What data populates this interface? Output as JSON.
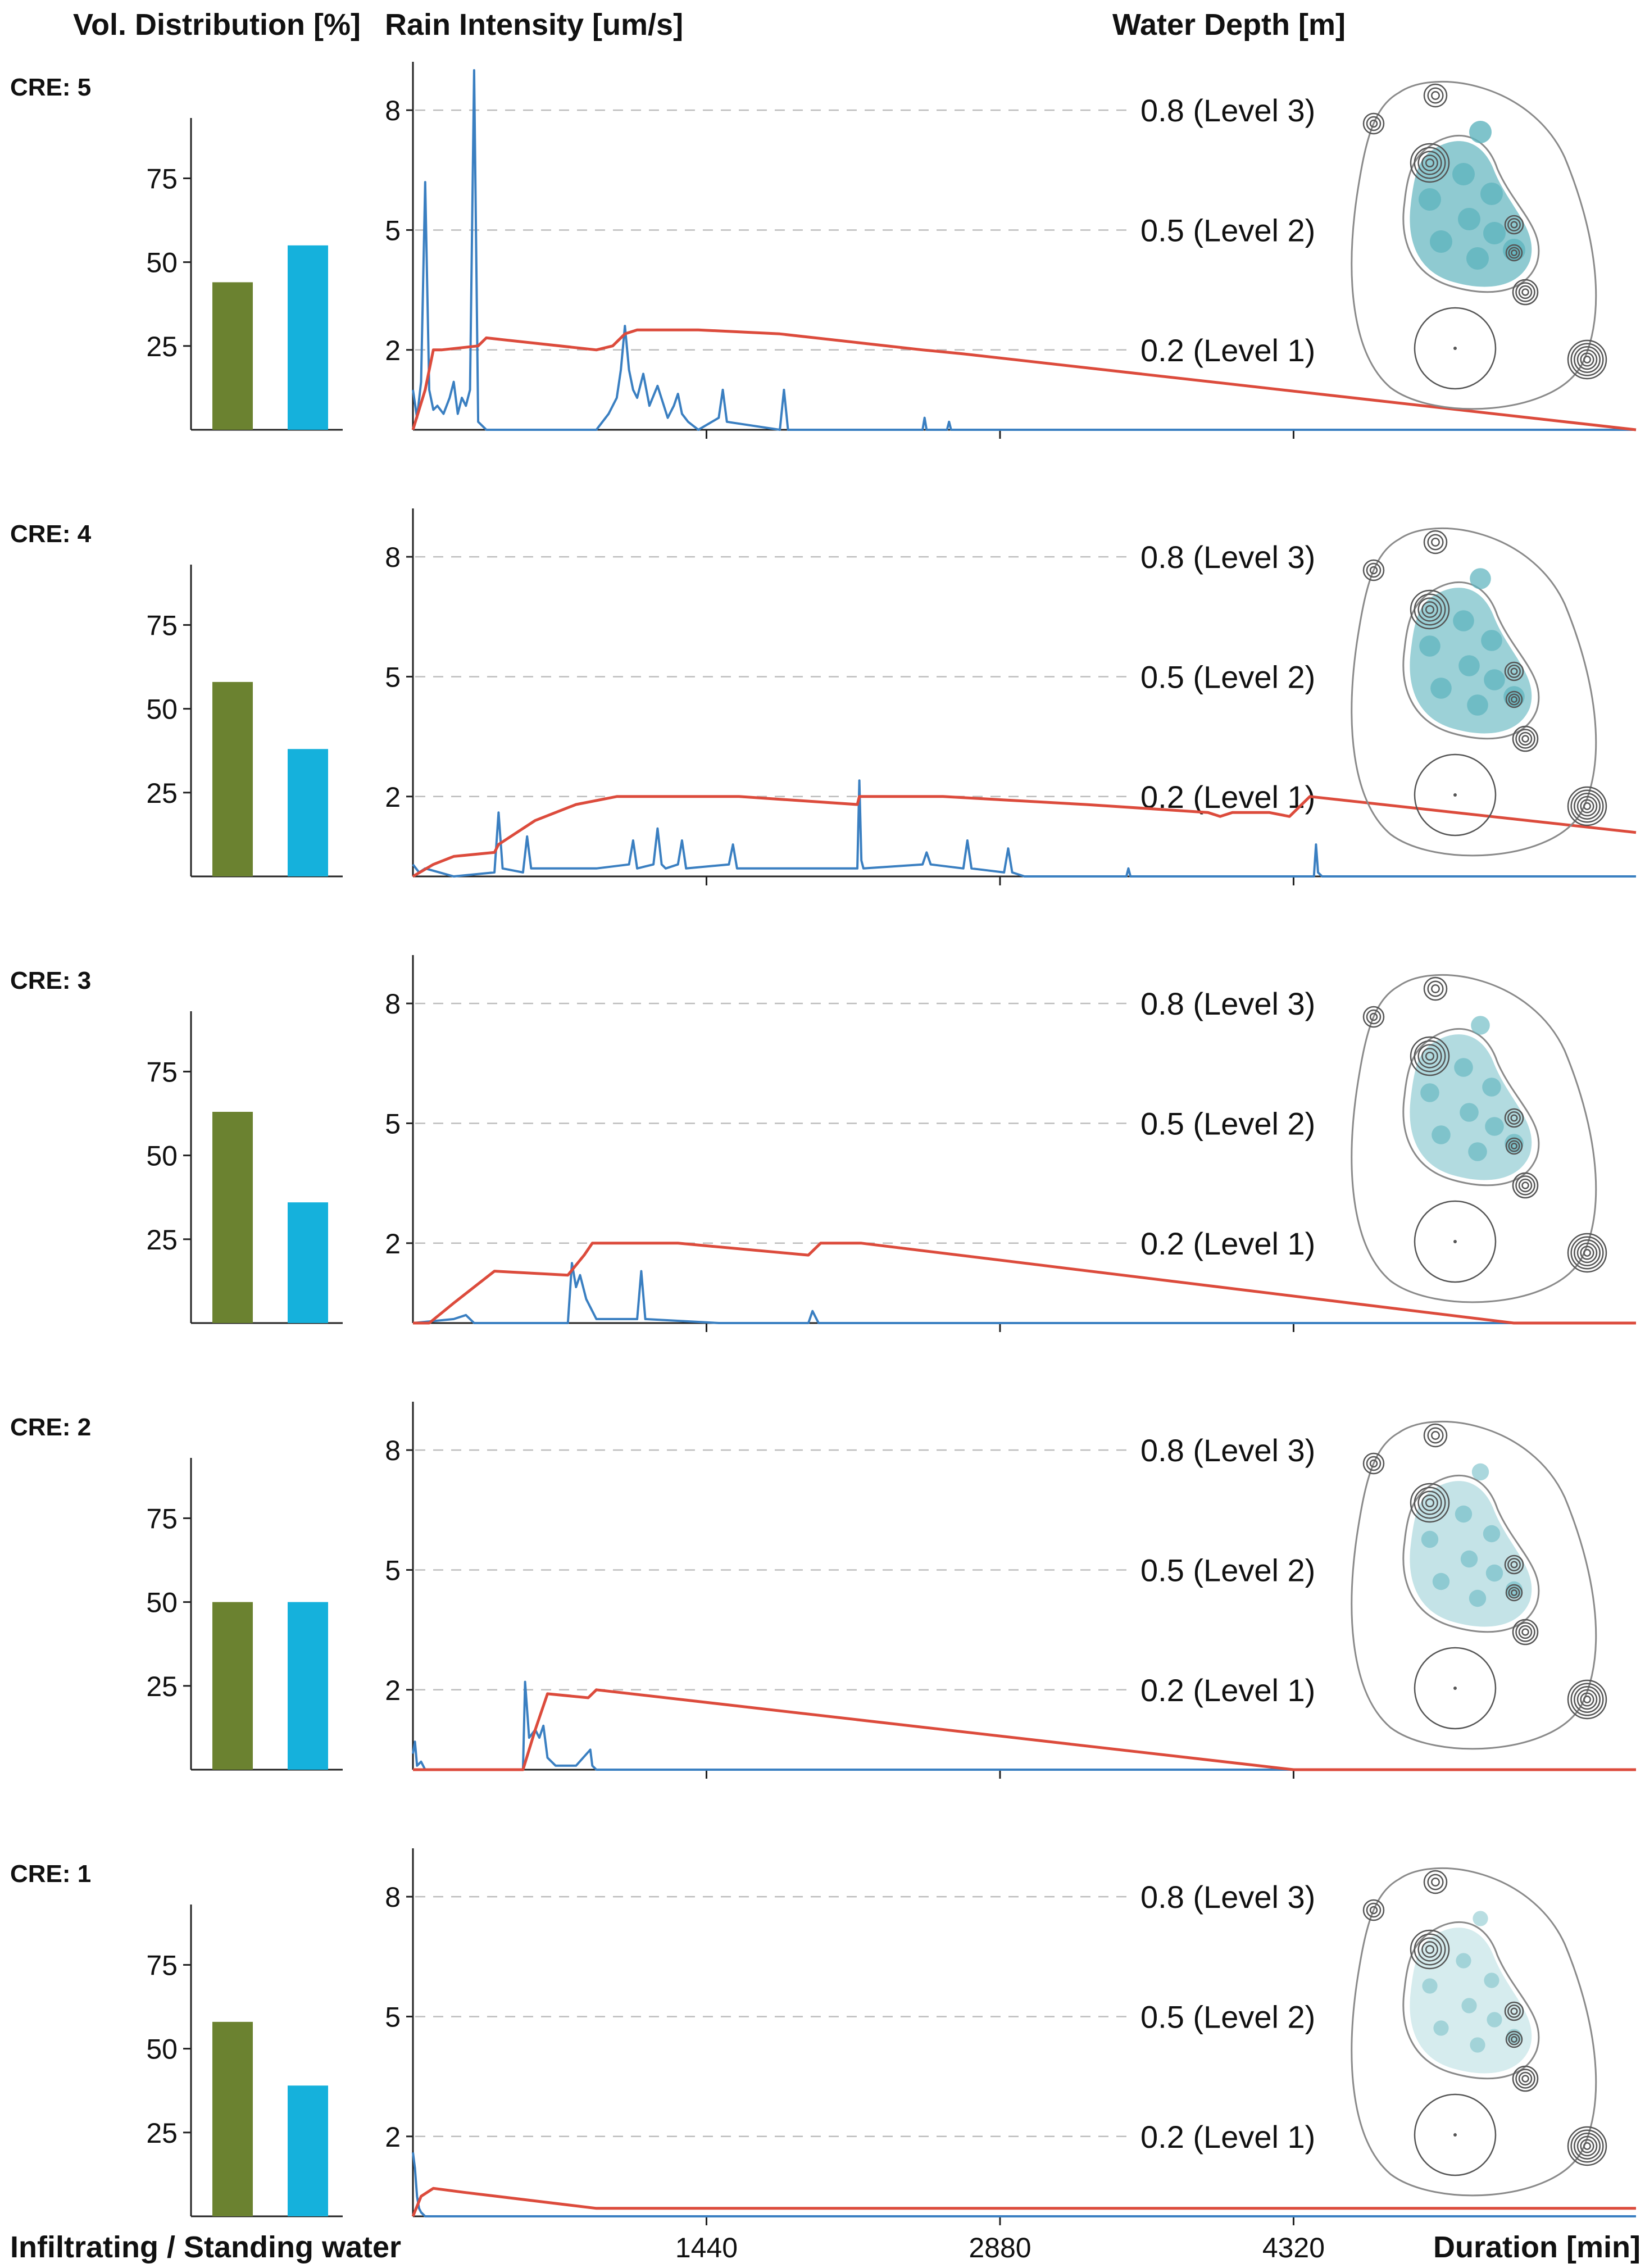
{
  "headers": {
    "vol_distribution": "Vol. Distribution [%]",
    "rain_intensity": "Rain Intensity [um/s]",
    "water_depth": "Water Depth [m]",
    "bar_legend": "Infiltrating / Standing water",
    "duration": "Duration [min]"
  },
  "colors": {
    "infiltrating": "#6b8230",
    "standing_water": "#15b1dc",
    "rain": "#3a7fc1",
    "water_depth": "#dc4b3c",
    "pond": "#5fb4be",
    "gridline": "#bdbdbd"
  },
  "chart_data": [
    {
      "panel": "CRE: 5",
      "type": "bar",
      "categories": [
        "Infiltrating",
        "Standing water"
      ],
      "values": [
        44,
        55
      ],
      "ylabel": "Vol. Distribution [%]",
      "yticks": [
        "25",
        "50",
        "75"
      ],
      "ylim": [
        0,
        93
      ],
      "rain_intensity": {
        "type": "line",
        "ylabel": "Rain Intensity [um/s]",
        "yticks": [
          "2",
          "5",
          "8"
        ],
        "ylim": [
          0,
          9
        ],
        "xlim": [
          0,
          6000
        ],
        "x": [
          0,
          20,
          40,
          60,
          80,
          100,
          120,
          150,
          180,
          200,
          220,
          240,
          260,
          280,
          300,
          320,
          340,
          360,
          900,
          960,
          1000,
          1020,
          1040,
          1060,
          1080,
          1100,
          1130,
          1160,
          1200,
          1250,
          1280,
          1300,
          1320,
          1350,
          1400,
          1500,
          1520,
          1540,
          1800,
          1820,
          1840,
          1860,
          2500,
          2510,
          2520,
          2620,
          2630,
          2640,
          6000
        ],
        "y": [
          1.0,
          0.3,
          1.2,
          6.2,
          1.0,
          0.5,
          0.6,
          0.4,
          0.8,
          1.2,
          0.4,
          0.8,
          0.6,
          1.0,
          9.0,
          0.2,
          0.1,
          0.0,
          0.0,
          0.4,
          0.8,
          1.5,
          2.6,
          1.5,
          1.0,
          0.8,
          1.4,
          0.6,
          1.1,
          0.3,
          0.6,
          0.9,
          0.4,
          0.2,
          0.0,
          0.3,
          1.0,
          0.2,
          0.0,
          1.0,
          0.0,
          0.0,
          0.0,
          0.3,
          0.0,
          0.0,
          0.2,
          0.0,
          0.0
        ]
      },
      "water_depth": {
        "type": "line",
        "ylabel": "Water Depth [m]",
        "levels": [
          "0.2 (Level 1)",
          "0.5 (Level 2)",
          "0.8 (Level 3)"
        ],
        "x": [
          0,
          60,
          100,
          140,
          320,
          360,
          900,
          980,
          1040,
          1100,
          1400,
          1800,
          2500,
          2700,
          6000
        ],
        "y": [
          0.0,
          0.1,
          0.2,
          0.2,
          0.21,
          0.23,
          0.2,
          0.21,
          0.24,
          0.25,
          0.25,
          0.24,
          0.2,
          0.19,
          0.0
        ]
      },
      "plan_fill": 1.0
    },
    {
      "panel": "CRE: 4",
      "type": "bar",
      "categories": [
        "Infiltrating",
        "Standing water"
      ],
      "values": [
        58,
        38
      ],
      "ylabel": "Vol. Distribution [%]",
      "yticks": [
        "25",
        "50",
        "75"
      ],
      "ylim": [
        0,
        93
      ],
      "rain_intensity": {
        "type": "line",
        "ylabel": "Rain Intensity [um/s]",
        "yticks": [
          "2",
          "5",
          "8"
        ],
        "ylim": [
          0,
          9
        ],
        "xlim": [
          0,
          6000
        ],
        "x": [
          0,
          30,
          60,
          200,
          400,
          420,
          440,
          540,
          560,
          580,
          900,
          1060,
          1080,
          1100,
          1180,
          1200,
          1220,
          1240,
          1300,
          1320,
          1340,
          1550,
          1570,
          1590,
          2180,
          2190,
          2200,
          2210,
          2500,
          2520,
          2540,
          2700,
          2720,
          2740,
          2900,
          2920,
          2940,
          3000,
          3500,
          3510,
          3520,
          4420,
          4430,
          4440,
          4460,
          6000
        ],
        "y": [
          0.3,
          0.1,
          0.2,
          0.0,
          0.1,
          1.6,
          0.2,
          0.1,
          1.0,
          0.2,
          0.2,
          0.3,
          0.9,
          0.2,
          0.3,
          1.2,
          0.3,
          0.2,
          0.3,
          0.9,
          0.2,
          0.3,
          0.8,
          0.2,
          0.2,
          2.4,
          0.4,
          0.2,
          0.3,
          0.6,
          0.3,
          0.2,
          0.9,
          0.2,
          0.1,
          0.7,
          0.1,
          0.0,
          0.0,
          0.2,
          0.0,
          0.0,
          0.8,
          0.1,
          0.0,
          0.0
        ]
      },
      "water_depth": {
        "type": "line",
        "ylabel": "Water Depth [m]",
        "levels": [
          "0.2 (Level 1)",
          "0.5 (Level 2)",
          "0.8 (Level 3)"
        ],
        "x": [
          0,
          100,
          200,
          400,
          420,
          600,
          800,
          1000,
          1300,
          1600,
          2180,
          2190,
          2600,
          3300,
          3900,
          3960,
          4020,
          4200,
          4300,
          4400,
          6000
        ],
        "y": [
          0.0,
          0.03,
          0.05,
          0.06,
          0.08,
          0.14,
          0.18,
          0.2,
          0.2,
          0.2,
          0.18,
          0.2,
          0.2,
          0.18,
          0.16,
          0.15,
          0.16,
          0.16,
          0.15,
          0.2,
          0.11
        ]
      },
      "plan_fill": 0.85
    },
    {
      "panel": "CRE: 3",
      "type": "bar",
      "categories": [
        "Infiltrating",
        "Standing water"
      ],
      "values": [
        63,
        36
      ],
      "ylabel": "Vol. Distribution [%]",
      "yticks": [
        "25",
        "50",
        "75"
      ],
      "ylim": [
        0,
        93
      ],
      "rain_intensity": {
        "type": "line",
        "ylabel": "Rain Intensity [um/s]",
        "yticks": [
          "2",
          "5",
          "8"
        ],
        "ylim": [
          0,
          9
        ],
        "xlim": [
          0,
          6000
        ],
        "x": [
          0,
          200,
          260,
          300,
          760,
          780,
          800,
          820,
          850,
          900,
          1100,
          1120,
          1140,
          1500,
          1940,
          1960,
          1990,
          6000
        ],
        "y": [
          0.0,
          0.1,
          0.2,
          0.0,
          0.0,
          1.5,
          0.9,
          1.2,
          0.6,
          0.1,
          0.1,
          1.3,
          0.1,
          0.0,
          0.0,
          0.3,
          0.0,
          0.0
        ]
      },
      "water_depth": {
        "type": "line",
        "ylabel": "Water Depth [m]",
        "levels": [
          "0.2 (Level 1)",
          "0.5 (Level 2)",
          "0.8 (Level 3)"
        ],
        "x": [
          0,
          80,
          200,
          400,
          760,
          840,
          880,
          1300,
          1940,
          2000,
          2200,
          5400,
          6000
        ],
        "y": [
          0.0,
          0.0,
          0.05,
          0.13,
          0.12,
          0.17,
          0.2,
          0.2,
          0.17,
          0.2,
          0.2,
          0.0,
          0.0
        ]
      },
      "plan_fill": 0.6
    },
    {
      "panel": "CRE: 2",
      "type": "bar",
      "categories": [
        "Infiltrating",
        "Standing water"
      ],
      "values": [
        50,
        50
      ],
      "ylabel": "Vol. Distribution [%]",
      "yticks": [
        "25",
        "50",
        "75"
      ],
      "ylim": [
        0,
        93
      ],
      "rain_intensity": {
        "type": "line",
        "ylabel": "Rain Intensity [um/s]",
        "yticks": [
          "2",
          "5",
          "8"
        ],
        "ylim": [
          0,
          9
        ],
        "xlim": [
          0,
          6000
        ],
        "x": [
          0,
          10,
          20,
          40,
          60,
          540,
          550,
          570,
          600,
          620,
          640,
          660,
          700,
          800,
          870,
          880,
          900,
          6000
        ],
        "y": [
          0.4,
          0.7,
          0.1,
          0.2,
          0.0,
          0.0,
          2.2,
          0.8,
          1.0,
          0.8,
          1.1,
          0.3,
          0.1,
          0.1,
          0.5,
          0.1,
          0.0,
          0.0
        ]
      },
      "water_depth": {
        "type": "line",
        "ylabel": "Water Depth [m]",
        "levels": [
          "0.2 (Level 1)",
          "0.5 (Level 2)",
          "0.8 (Level 3)"
        ],
        "x": [
          0,
          60,
          540,
          600,
          660,
          860,
          900,
          4320,
          6000
        ],
        "y": [
          0.0,
          0.0,
          0.0,
          0.1,
          0.19,
          0.18,
          0.2,
          0.0,
          0.0
        ]
      },
      "plan_fill": 0.4
    },
    {
      "panel": "CRE: 1",
      "type": "bar",
      "categories": [
        "Infiltrating",
        "Standing water"
      ],
      "values": [
        58,
        39
      ],
      "ylabel": "Vol. Distribution [%]",
      "yticks": [
        "25",
        "50",
        "75"
      ],
      "ylim": [
        0,
        93
      ],
      "rain_intensity": {
        "type": "line",
        "ylabel": "Rain Intensity [um/s]",
        "yticks": [
          "2",
          "5",
          "8"
        ],
        "ylim": [
          0,
          9
        ],
        "xlim": [
          0,
          6000
        ],
        "x": [
          0,
          10,
          20,
          30,
          40,
          60,
          6000
        ],
        "y": [
          1.6,
          1.2,
          0.5,
          0.2,
          0.1,
          0.0,
          0.0
        ]
      },
      "water_depth": {
        "type": "line",
        "ylabel": "Water Depth [m]",
        "levels": [
          "0.2 (Level 1)",
          "0.5 (Level 2)",
          "0.8 (Level 3)"
        ],
        "x": [
          0,
          40,
          100,
          250,
          900,
          6000
        ],
        "y": [
          0.0,
          0.05,
          0.07,
          0.06,
          0.02,
          0.02
        ]
      },
      "plan_fill": 0.2
    }
  ],
  "shared_x": {
    "label": "Duration [min]",
    "ticks": [
      1440,
      2880,
      4320
    ],
    "tick_labels": [
      "1440",
      "2880",
      "4320"
    ],
    "range": [
      0,
      6000
    ]
  }
}
